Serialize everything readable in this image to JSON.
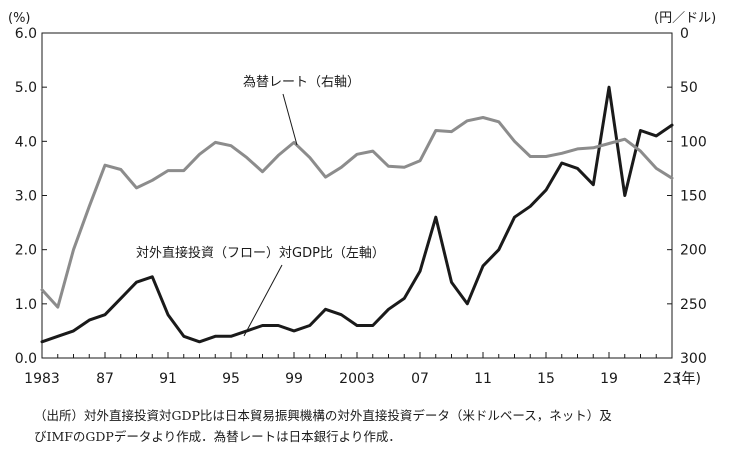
{
  "chart_data": {
    "type": "line",
    "x": [
      1983,
      1984,
      1985,
      1986,
      1987,
      1988,
      1989,
      1990,
      1991,
      1992,
      1993,
      1994,
      1995,
      1996,
      1997,
      1998,
      1999,
      2000,
      2001,
      2002,
      2003,
      2004,
      2005,
      2006,
      2007,
      2008,
      2009,
      2010,
      2011,
      2012,
      2013,
      2014,
      2015,
      2016,
      2017,
      2018,
      2019,
      2020,
      2021,
      2022,
      2023
    ],
    "series": [
      {
        "name": "対外直接投資（フロー）対GDP比（左軸）",
        "axis": "left",
        "color": "#1a1a1a",
        "values": [
          0.3,
          0.4,
          0.5,
          0.7,
          0.8,
          1.1,
          1.4,
          1.5,
          0.8,
          0.4,
          0.3,
          0.4,
          0.4,
          0.5,
          0.6,
          0.6,
          0.5,
          0.6,
          0.9,
          0.8,
          0.6,
          0.6,
          0.9,
          1.1,
          1.6,
          2.6,
          1.4,
          1.0,
          1.7,
          2.0,
          2.6,
          2.8,
          3.1,
          3.6,
          3.5,
          3.2,
          5.0,
          3.0,
          4.2,
          4.1,
          4.3
        ]
      },
      {
        "name": "為替レート（右軸）",
        "axis": "right",
        "color": "#8c8c8c",
        "values": [
          237,
          253,
          200,
          160,
          122,
          126,
          143,
          136,
          127,
          127,
          112,
          101,
          104,
          115,
          128,
          113,
          101,
          115,
          133,
          124,
          112,
          109,
          123,
          124,
          118,
          90,
          91,
          81,
          78,
          82,
          100,
          114,
          114,
          111,
          107,
          106,
          102,
          98,
          109,
          125,
          134
        ]
      }
    ],
    "y_left": {
      "min": 0,
      "max": 6,
      "ticks": [
        "0.0",
        "1.0",
        "2.0",
        "3.0",
        "4.0",
        "5.0",
        "6.0"
      ],
      "unit": "(%)"
    },
    "y_right": {
      "min": 0,
      "max": 300,
      "inverted": true,
      "ticks": [
        "0",
        "50",
        "100",
        "150",
        "200",
        "250",
        "300"
      ],
      "unit": "(円／ドル)"
    },
    "x_ticks": [
      {
        "value": 1983,
        "label": "1983"
      },
      {
        "value": 1987,
        "label": "87"
      },
      {
        "value": 1991,
        "label": "91"
      },
      {
        "value": 1995,
        "label": "95"
      },
      {
        "value": 1999,
        "label": "99"
      },
      {
        "value": 2003,
        "label": "2003"
      },
      {
        "value": 2007,
        "label": "07"
      },
      {
        "value": 2011,
        "label": "11"
      },
      {
        "value": 2015,
        "label": "15"
      },
      {
        "value": 2019,
        "label": "19"
      },
      {
        "value": 2023,
        "label": "23"
      }
    ],
    "x_unit": "(年)",
    "grid": false,
    "legend": "inline annotations"
  },
  "annotations": {
    "fx_label": "為替レート（右軸）",
    "fdi_label": "対外直接投資（フロー）対GDP比（左軸）"
  },
  "source_note": {
    "line1": "（出所）対外直接投資対GDP比は日本貿易振興機構の対外直接投資データ（米ドルベース，ネット）及",
    "line2": "びIMFのGDPデータより作成．為替レートは日本銀行より作成．"
  }
}
